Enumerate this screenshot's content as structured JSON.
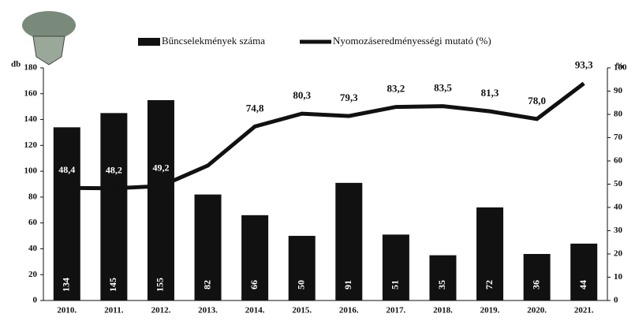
{
  "chart_data": {
    "type": "bar_line",
    "y_label": "db",
    "y2_label": "%",
    "categories": [
      "2010.",
      "2011.",
      "2012.",
      "2013.",
      "2014.",
      "2015.",
      "2016.",
      "2017.",
      "2018.",
      "2019.",
      "2020.",
      "2021."
    ],
    "series": [
      {
        "name": "Bűncselekmények száma",
        "type": "bar",
        "color": "#111111",
        "axis": "y",
        "values": [
          134,
          145,
          155,
          82,
          66,
          50,
          91,
          51,
          35,
          72,
          36,
          44
        ]
      },
      {
        "name": "Nyomozáseredményességi mutató (%)",
        "type": "line",
        "color": "#111111",
        "axis": "y2",
        "values": [
          48.4,
          48.2,
          49.2,
          58,
          74.8,
          80.3,
          79.3,
          83.2,
          83.5,
          81.3,
          78.0,
          93.3
        ],
        "value_labels": [
          "48,4",
          "48,2",
          "49,2",
          null,
          "74,8",
          "80,3",
          "79,3",
          "83,2",
          "83,5",
          "81,3",
          "78,0",
          "93,3"
        ]
      }
    ],
    "ylim": [
      0,
      180
    ],
    "yticks": [
      0,
      20,
      40,
      60,
      80,
      100,
      120,
      140,
      160,
      180
    ],
    "y2lim": [
      0,
      100
    ],
    "y2ticks": [
      0,
      10,
      20,
      30,
      40,
      50,
      60,
      70,
      80,
      90,
      100
    ],
    "legend": "top"
  }
}
